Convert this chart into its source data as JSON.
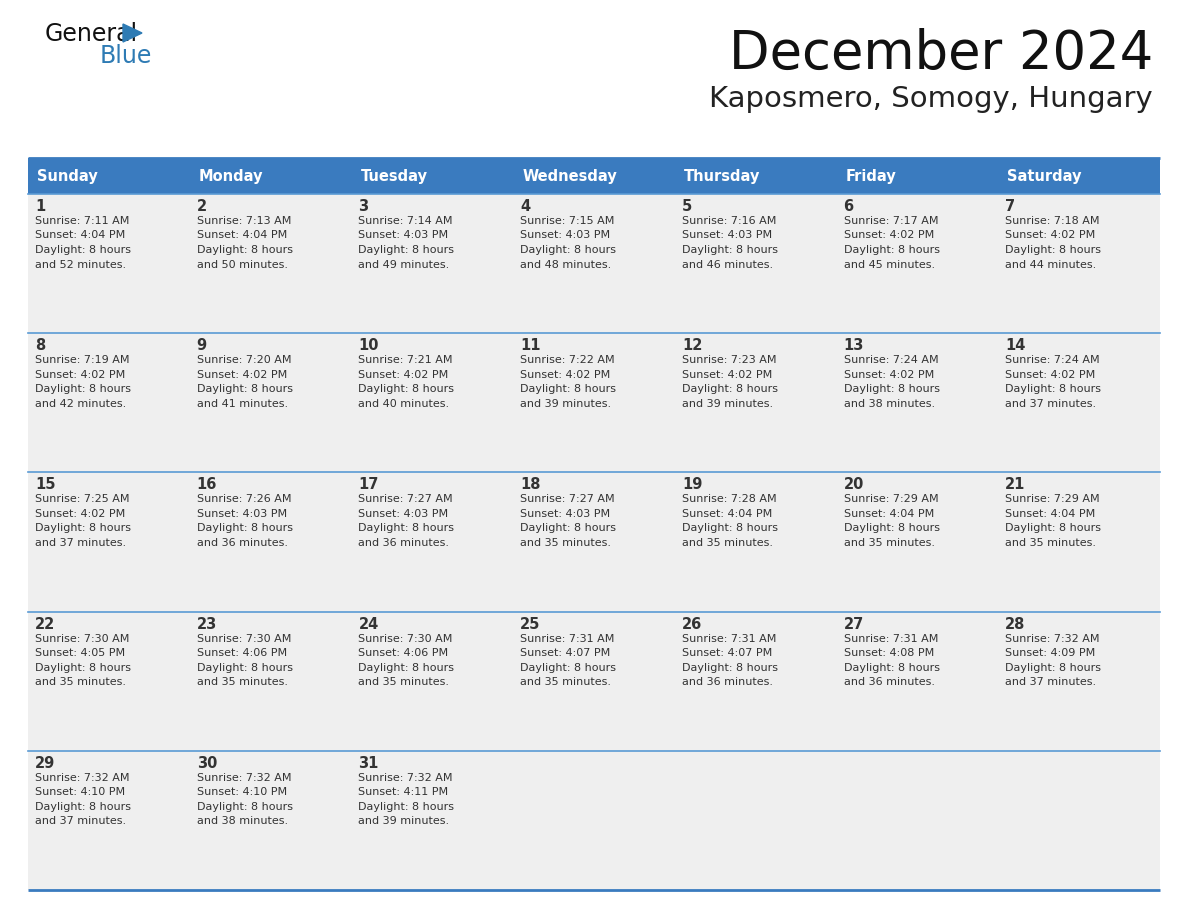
{
  "title": "December 2024",
  "subtitle": "Kaposmero, Somogy, Hungary",
  "header_color": "#3a7bbf",
  "header_text_color": "#FFFFFF",
  "cell_bg_color": "#EFEFEF",
  "border_color": "#3a7bbf",
  "separator_color": "#5a9ad4",
  "text_color": "#333333",
  "days_of_week": [
    "Sunday",
    "Monday",
    "Tuesday",
    "Wednesday",
    "Thursday",
    "Friday",
    "Saturday"
  ],
  "weeks": [
    [
      {
        "day": 1,
        "sunrise": "7:11 AM",
        "sunset": "4:04 PM",
        "daylight": "8 hours",
        "daylight2": "and 52 minutes."
      },
      {
        "day": 2,
        "sunrise": "7:13 AM",
        "sunset": "4:04 PM",
        "daylight": "8 hours",
        "daylight2": "and 50 minutes."
      },
      {
        "day": 3,
        "sunrise": "7:14 AM",
        "sunset": "4:03 PM",
        "daylight": "8 hours",
        "daylight2": "and 49 minutes."
      },
      {
        "day": 4,
        "sunrise": "7:15 AM",
        "sunset": "4:03 PM",
        "daylight": "8 hours",
        "daylight2": "and 48 minutes."
      },
      {
        "day": 5,
        "sunrise": "7:16 AM",
        "sunset": "4:03 PM",
        "daylight": "8 hours",
        "daylight2": "and 46 minutes."
      },
      {
        "day": 6,
        "sunrise": "7:17 AM",
        "sunset": "4:02 PM",
        "daylight": "8 hours",
        "daylight2": "and 45 minutes."
      },
      {
        "day": 7,
        "sunrise": "7:18 AM",
        "sunset": "4:02 PM",
        "daylight": "8 hours",
        "daylight2": "and 44 minutes."
      }
    ],
    [
      {
        "day": 8,
        "sunrise": "7:19 AM",
        "sunset": "4:02 PM",
        "daylight": "8 hours",
        "daylight2": "and 42 minutes."
      },
      {
        "day": 9,
        "sunrise": "7:20 AM",
        "sunset": "4:02 PM",
        "daylight": "8 hours",
        "daylight2": "and 41 minutes."
      },
      {
        "day": 10,
        "sunrise": "7:21 AM",
        "sunset": "4:02 PM",
        "daylight": "8 hours",
        "daylight2": "and 40 minutes."
      },
      {
        "day": 11,
        "sunrise": "7:22 AM",
        "sunset": "4:02 PM",
        "daylight": "8 hours",
        "daylight2": "and 39 minutes."
      },
      {
        "day": 12,
        "sunrise": "7:23 AM",
        "sunset": "4:02 PM",
        "daylight": "8 hours",
        "daylight2": "and 39 minutes."
      },
      {
        "day": 13,
        "sunrise": "7:24 AM",
        "sunset": "4:02 PM",
        "daylight": "8 hours",
        "daylight2": "and 38 minutes."
      },
      {
        "day": 14,
        "sunrise": "7:24 AM",
        "sunset": "4:02 PM",
        "daylight": "8 hours",
        "daylight2": "and 37 minutes."
      }
    ],
    [
      {
        "day": 15,
        "sunrise": "7:25 AM",
        "sunset": "4:02 PM",
        "daylight": "8 hours",
        "daylight2": "and 37 minutes."
      },
      {
        "day": 16,
        "sunrise": "7:26 AM",
        "sunset": "4:03 PM",
        "daylight": "8 hours",
        "daylight2": "and 36 minutes."
      },
      {
        "day": 17,
        "sunrise": "7:27 AM",
        "sunset": "4:03 PM",
        "daylight": "8 hours",
        "daylight2": "and 36 minutes."
      },
      {
        "day": 18,
        "sunrise": "7:27 AM",
        "sunset": "4:03 PM",
        "daylight": "8 hours",
        "daylight2": "and 35 minutes."
      },
      {
        "day": 19,
        "sunrise": "7:28 AM",
        "sunset": "4:04 PM",
        "daylight": "8 hours",
        "daylight2": "and 35 minutes."
      },
      {
        "day": 20,
        "sunrise": "7:29 AM",
        "sunset": "4:04 PM",
        "daylight": "8 hours",
        "daylight2": "and 35 minutes."
      },
      {
        "day": 21,
        "sunrise": "7:29 AM",
        "sunset": "4:04 PM",
        "daylight": "8 hours",
        "daylight2": "and 35 minutes."
      }
    ],
    [
      {
        "day": 22,
        "sunrise": "7:30 AM",
        "sunset": "4:05 PM",
        "daylight": "8 hours",
        "daylight2": "and 35 minutes."
      },
      {
        "day": 23,
        "sunrise": "7:30 AM",
        "sunset": "4:06 PM",
        "daylight": "8 hours",
        "daylight2": "and 35 minutes."
      },
      {
        "day": 24,
        "sunrise": "7:30 AM",
        "sunset": "4:06 PM",
        "daylight": "8 hours",
        "daylight2": "and 35 minutes."
      },
      {
        "day": 25,
        "sunrise": "7:31 AM",
        "sunset": "4:07 PM",
        "daylight": "8 hours",
        "daylight2": "and 35 minutes."
      },
      {
        "day": 26,
        "sunrise": "7:31 AM",
        "sunset": "4:07 PM",
        "daylight": "8 hours",
        "daylight2": "and 36 minutes."
      },
      {
        "day": 27,
        "sunrise": "7:31 AM",
        "sunset": "4:08 PM",
        "daylight": "8 hours",
        "daylight2": "and 36 minutes."
      },
      {
        "day": 28,
        "sunrise": "7:32 AM",
        "sunset": "4:09 PM",
        "daylight": "8 hours",
        "daylight2": "and 37 minutes."
      }
    ],
    [
      {
        "day": 29,
        "sunrise": "7:32 AM",
        "sunset": "4:10 PM",
        "daylight": "8 hours",
        "daylight2": "and 37 minutes."
      },
      {
        "day": 30,
        "sunrise": "7:32 AM",
        "sunset": "4:10 PM",
        "daylight": "8 hours",
        "daylight2": "and 38 minutes."
      },
      {
        "day": 31,
        "sunrise": "7:32 AM",
        "sunset": "4:11 PM",
        "daylight": "8 hours",
        "daylight2": "and 39 minutes."
      },
      null,
      null,
      null,
      null
    ]
  ],
  "logo_color_general": "#111111",
  "logo_color_blue": "#2E7BB4",
  "fig_width": 11.88,
  "fig_height": 9.18,
  "dpi": 100
}
